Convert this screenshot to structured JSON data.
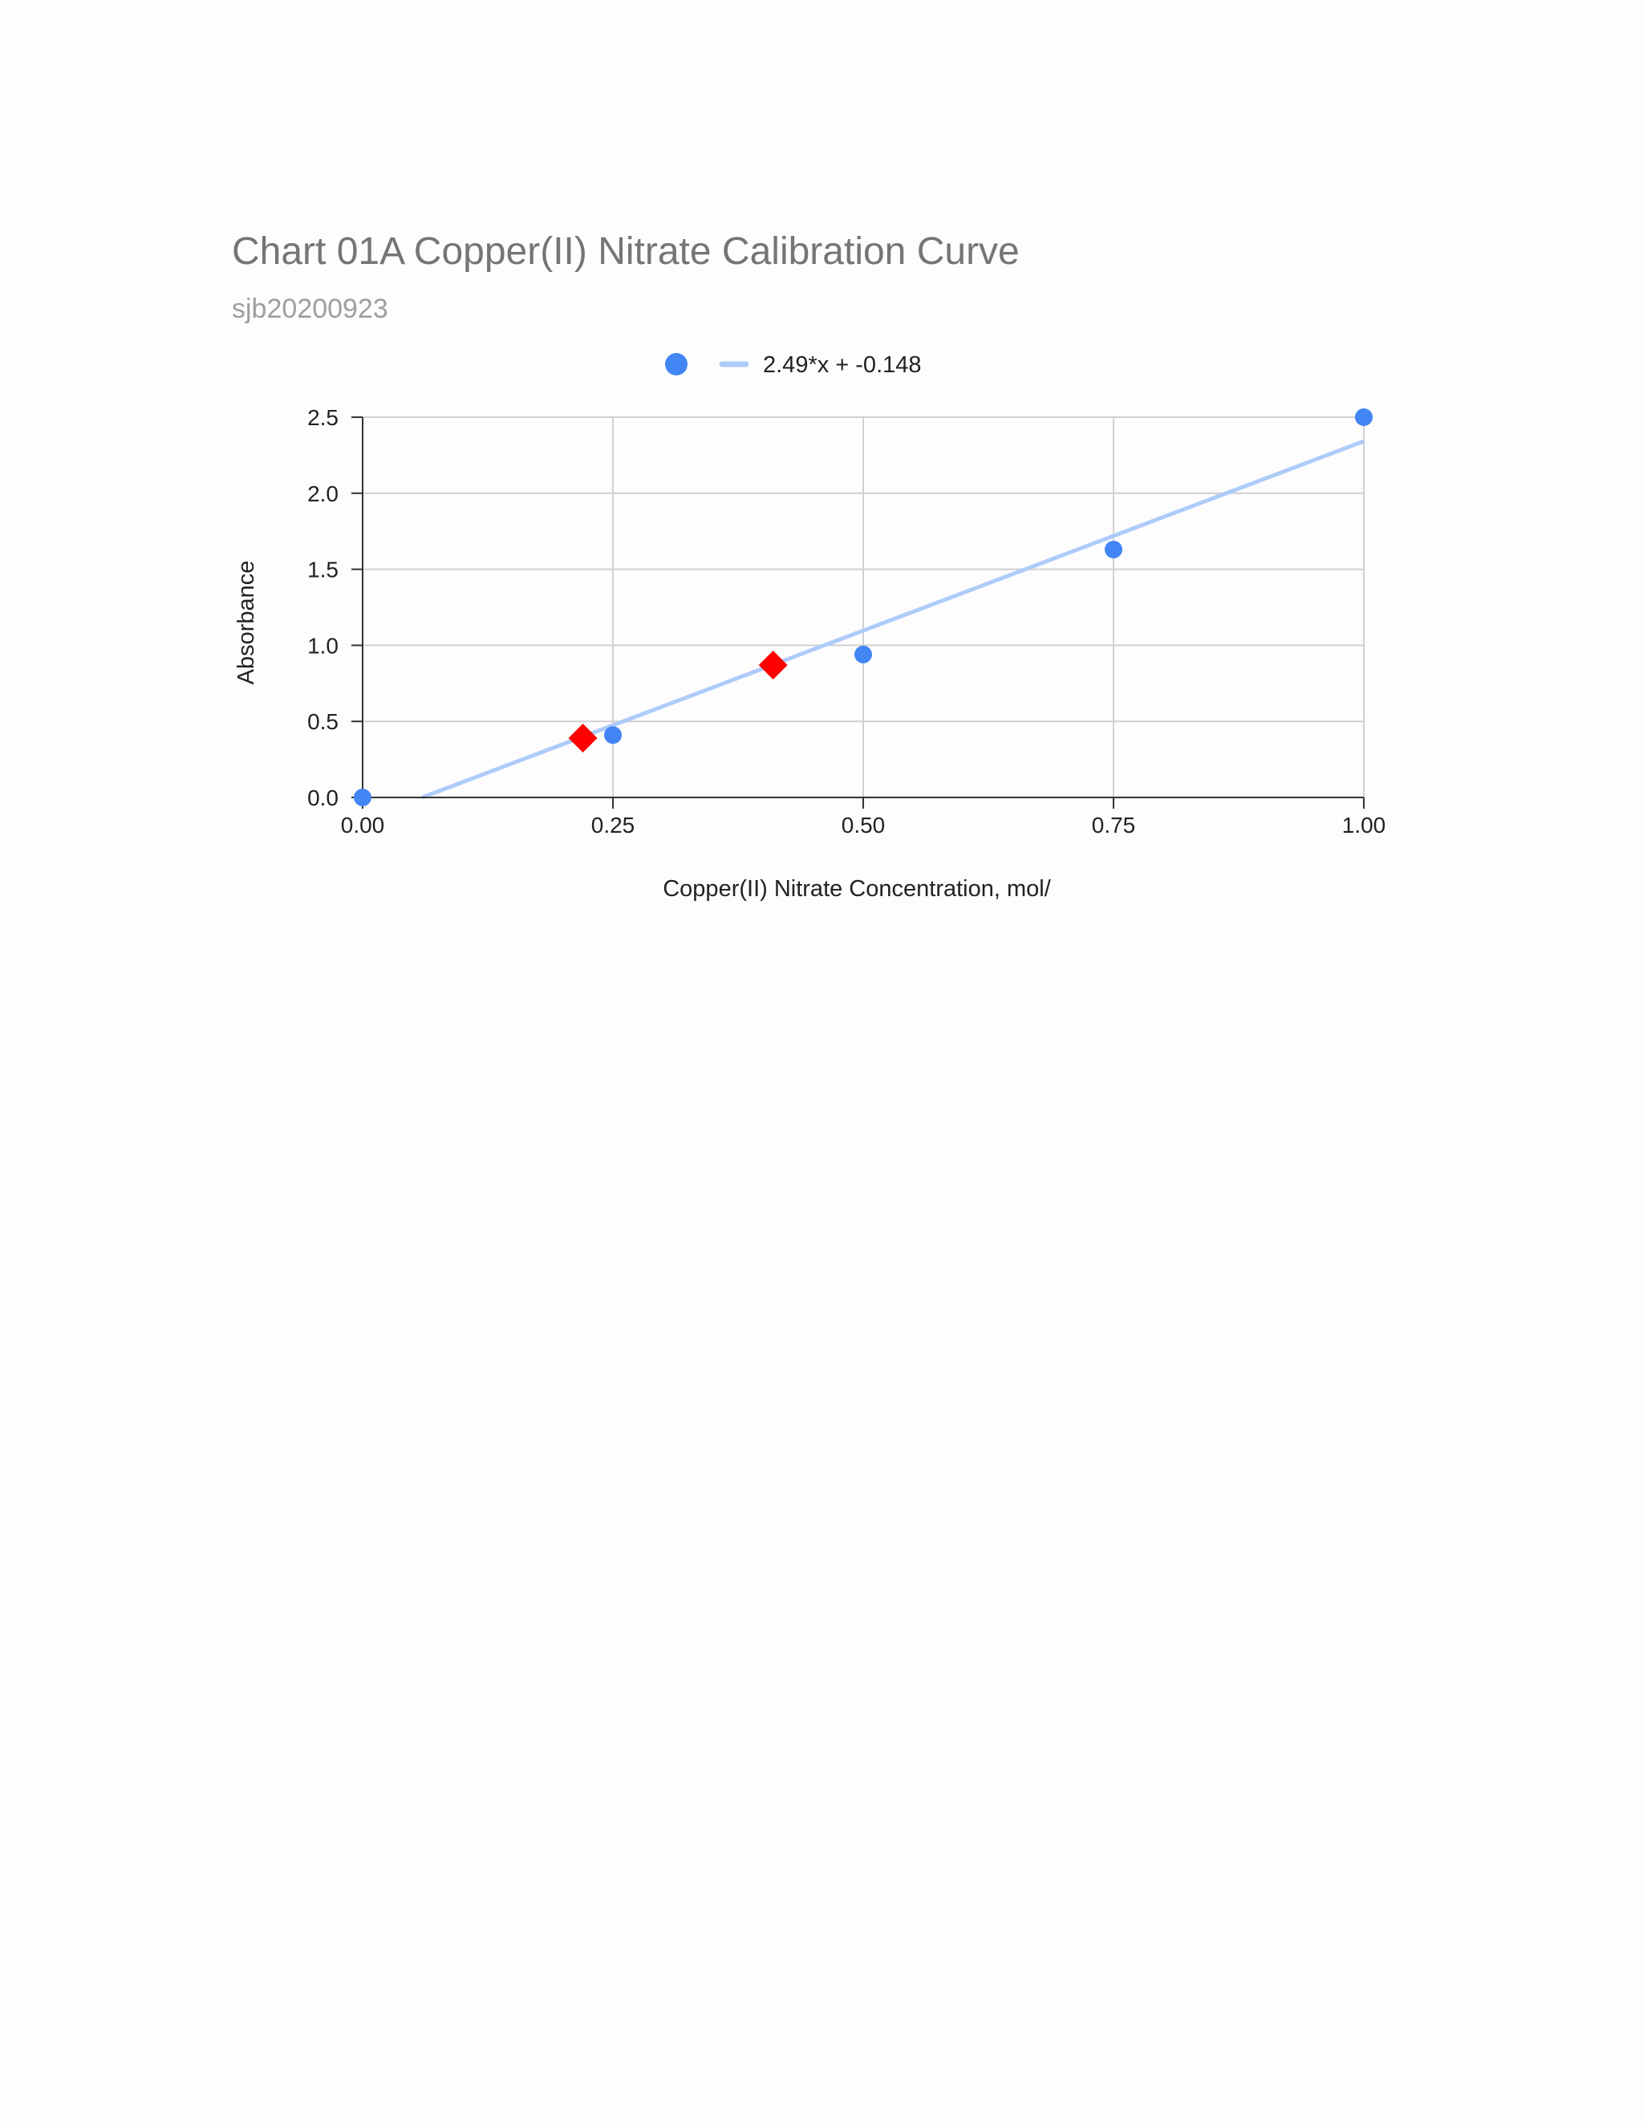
{
  "chart_data": {
    "type": "scatter",
    "title": "Chart 01A Copper(II) Nitrate Calibration Curve",
    "subtitle": "sjb20200923",
    "xlabel": "Copper(II) Nitrate Concentration, mol/",
    "ylabel": "Absorbance",
    "xlim": [
      0,
      1
    ],
    "ylim": [
      0,
      2.5
    ],
    "x_ticks": [
      "0.00",
      "0.25",
      "0.50",
      "0.75",
      "1.00"
    ],
    "y_ticks": [
      "0.0",
      "0.5",
      "1.0",
      "1.5",
      "2.0",
      "2.5"
    ],
    "grid": true,
    "legend_position": "top",
    "series": [
      {
        "marker": "circle",
        "color": "#4285f4",
        "points": [
          {
            "x": 0.0,
            "y": 0.0
          },
          {
            "x": 0.25,
            "y": 0.41
          },
          {
            "x": 0.5,
            "y": 0.94
          },
          {
            "x": 0.75,
            "y": 1.63
          },
          {
            "x": 1.0,
            "y": 2.5
          }
        ]
      },
      {
        "marker": "diamond",
        "color": "#ff0000",
        "points": [
          {
            "x": 0.22,
            "y": 0.39
          },
          {
            "x": 0.41,
            "y": 0.87
          }
        ]
      }
    ],
    "trendline": {
      "name": "2.49*x + -0.148",
      "slope": 2.49,
      "intercept": -0.148,
      "color": "#aecbfa"
    }
  }
}
